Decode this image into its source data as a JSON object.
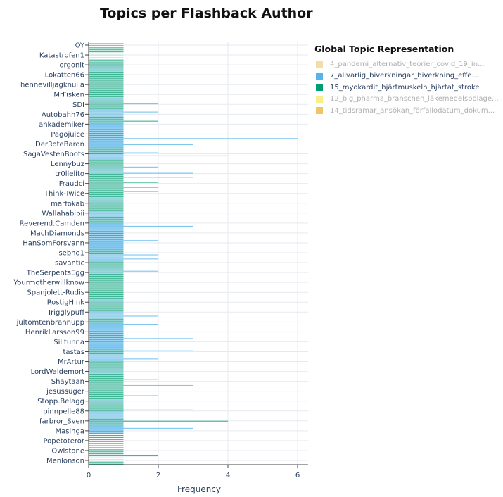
{
  "chart_data": {
    "type": "bar",
    "orientation": "horizontal",
    "title": "Topics per Flashback Author",
    "xlabel": "Frequency",
    "ylabel": "",
    "xlim": [
      0,
      6.3
    ],
    "x_ticks": [
      0,
      2,
      4,
      6
    ],
    "grid": true,
    "legend_position": "right",
    "legend_title": "Global Topic Representation",
    "labeled_categories": [
      "OY",
      "Katastrofen1",
      "orgonit",
      "Lokatten66",
      "hennevilljagknulla",
      "MrFisken",
      "SDI",
      "Autobahn76",
      "ankademiker",
      "Pagojuice",
      "DerRoteBaron",
      "SagaVestenBoots",
      "Lennybuz",
      "tr0llelito",
      "Fraudci",
      "Think-Twice",
      "marfokab",
      "Wallahabibii",
      "Reverend.Camden",
      "MachDiamonds",
      "HanSomForsvann",
      "sebno1",
      "savantic",
      "TheSerpentsEgg",
      "Yourmotherwillknow",
      "Spanjolett-Rudis",
      "RostigHink",
      "Trigglypuff",
      "jultomtenbrannupp",
      "HenrikLarsson99",
      "Silltunna",
      "tastas",
      "MrArtur",
      "LordWaldemort",
      "Shaytaan",
      "jesussuger",
      "Stopp.Belagg",
      "pinnpelle88",
      "farbror_Sven",
      "Masinga",
      "Popetoteror",
      "Owlstone",
      "Menlonson"
    ],
    "series": [
      {
        "name": "4_pandemi_alternativ_teorier_covid_19_in...",
        "color": "#E8C96D",
        "visible": false
      },
      {
        "name": "7_allvarlig_biverkningar_biverkning_effe...",
        "color": "#56B4E9",
        "visible": true,
        "values": [
          0,
          0,
          0,
          0,
          0,
          0,
          0,
          0,
          0,
          0,
          1,
          1,
          1,
          1,
          1,
          1,
          1,
          1,
          1,
          1,
          1,
          1,
          1,
          1,
          1,
          1,
          1,
          1,
          1,
          1,
          2,
          1,
          1,
          1,
          2,
          1,
          1,
          1,
          1,
          1,
          1,
          1,
          1,
          1,
          1,
          1,
          1,
          6,
          1,
          1,
          3,
          1,
          1,
          1,
          2,
          1,
          1,
          1,
          1,
          1,
          1,
          2,
          1,
          1,
          3,
          1,
          3,
          1,
          1,
          1,
          1,
          2,
          1,
          2,
          1,
          1,
          1,
          1,
          1,
          1,
          1,
          1,
          1,
          1,
          1,
          1,
          1,
          1,
          1,
          1,
          3,
          1,
          1,
          1,
          1,
          1,
          1,
          2,
          1,
          1,
          1,
          1,
          1,
          1,
          2,
          1,
          2,
          1,
          1,
          1,
          1,
          1,
          2,
          1,
          1,
          1,
          1,
          1,
          1,
          1,
          1,
          1,
          1,
          1,
          1,
          1,
          1,
          1,
          1,
          1,
          1,
          1,
          1,
          1,
          2,
          1,
          1,
          1,
          2,
          1,
          1,
          1,
          1,
          1,
          1,
          3,
          1,
          1,
          1,
          1,
          1,
          3,
          1,
          1,
          1,
          2,
          1,
          1,
          1,
          1,
          1,
          1,
          1,
          1,
          1,
          2,
          1,
          1,
          3,
          1,
          1,
          1,
          1,
          2,
          1,
          1,
          1,
          1,
          1,
          1,
          3,
          1,
          1,
          1,
          1,
          1,
          1,
          1,
          1,
          3,
          1,
          1
        ]
      },
      {
        "name": "15_myokardit_hjärtmuskeln_hjärtat_stroke",
        "color": "#009E73",
        "visible": true,
        "values": [
          1,
          1,
          1,
          1,
          1,
          1,
          1,
          1,
          1,
          1,
          1,
          1,
          1,
          1,
          1,
          1,
          1,
          1,
          1,
          1,
          1,
          1,
          1,
          1,
          1,
          1,
          1,
          1,
          1,
          1,
          1,
          1,
          1,
          1,
          1,
          1,
          1,
          1,
          2,
          1,
          1,
          1,
          1,
          1,
          1,
          1,
          1,
          1,
          1,
          1,
          1,
          1,
          1,
          1,
          1,
          4,
          1,
          1,
          1,
          1,
          1,
          1,
          1,
          1,
          1,
          1,
          1,
          1,
          2,
          1,
          1,
          1,
          1,
          1,
          1,
          1,
          1,
          1,
          1,
          1,
          1,
          1,
          1,
          1,
          1,
          1,
          1,
          1,
          1,
          1,
          1,
          1,
          1,
          1,
          1,
          1,
          1,
          1,
          1,
          1,
          1,
          1,
          1,
          1,
          1,
          1,
          1,
          1,
          1,
          1,
          1,
          1,
          1,
          1,
          1,
          1,
          1,
          1,
          1,
          1,
          1,
          1,
          1,
          1,
          1,
          1,
          1,
          1,
          1,
          1,
          1,
          1,
          1,
          1,
          1,
          1,
          1,
          1,
          1,
          1,
          1,
          1,
          1,
          1,
          1,
          1,
          1,
          1,
          1,
          1,
          1,
          1,
          1,
          1,
          1,
          1,
          1,
          1,
          1,
          1,
          1,
          1,
          1,
          1,
          1,
          1,
          1,
          1,
          1,
          1,
          1,
          1,
          1,
          1,
          1,
          1,
          1,
          1,
          1,
          1,
          1,
          1,
          1,
          1,
          1,
          4,
          1,
          1,
          1,
          1,
          1,
          1,
          1,
          1,
          1,
          1,
          1,
          1,
          1,
          1,
          1,
          1,
          2,
          1,
          1,
          1,
          1
        ]
      },
      {
        "name": "12_big_pharma_branschen_läkemedelsbolage...",
        "color": "#F0E442",
        "visible": false
      },
      {
        "name": "14_tidsramar_ansökan_förfallodatum_dokum...",
        "color": "#E69F00",
        "visible": false
      }
    ]
  }
}
